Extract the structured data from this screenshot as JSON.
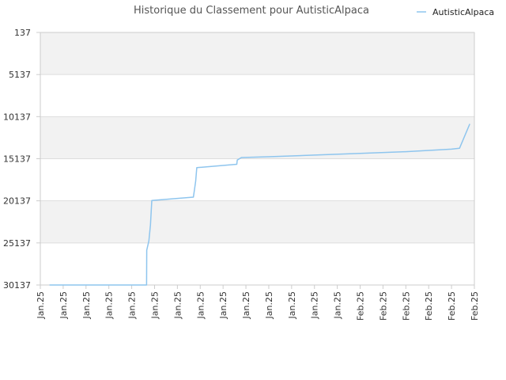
{
  "chart_data": {
    "type": "line",
    "title": "Historique du Classement pour AutisticAlpaca",
    "legend": {
      "position": "top-right",
      "entries": [
        "AutisticAlpaca"
      ]
    },
    "y_axis": {
      "reversed": true,
      "ticks": [
        "137",
        "5137",
        "10137",
        "15137",
        "20137",
        "25137",
        "30137"
      ],
      "ylim": [
        137,
        30137
      ],
      "alternating_bands": true
    },
    "x_axis": {
      "ticks": [
        "Jan.25",
        "Jan.25",
        "Jan.25",
        "Jan.25",
        "Jan.25",
        "Jan.25",
        "Jan.25",
        "Jan.25",
        "Jan.25",
        "Jan.25",
        "Jan.25",
        "Jan.25",
        "Jan.25",
        "Jan.25",
        "Feb.25",
        "Feb.25",
        "Feb.25",
        "Feb.25",
        "Feb.25",
        "Feb.25"
      ],
      "label_rotation": -90,
      "range": [
        0,
        19
      ]
    },
    "colors": {
      "line": "#8ec5ee",
      "band": "#f2f2f2",
      "grid": "#dddddd",
      "axis": "#cccccc"
    },
    "series": [
      {
        "name": "AutisticAlpaca",
        "points": [
          [
            0.4,
            30137
          ],
          [
            4.65,
            30137
          ],
          [
            4.66,
            26000
          ],
          [
            4.75,
            24900
          ],
          [
            4.82,
            23000
          ],
          [
            4.88,
            20100
          ],
          [
            6.7,
            19700
          ],
          [
            6.75,
            18800
          ],
          [
            6.8,
            17800
          ],
          [
            6.85,
            16200
          ],
          [
            8.6,
            15800
          ],
          [
            8.62,
            15300
          ],
          [
            8.8,
            15000
          ],
          [
            10.0,
            14900
          ],
          [
            12.0,
            14700
          ],
          [
            14.0,
            14500
          ],
          [
            16.0,
            14300
          ],
          [
            18.0,
            14000
          ],
          [
            18.35,
            13900
          ],
          [
            18.8,
            11000
          ]
        ]
      }
    ]
  }
}
